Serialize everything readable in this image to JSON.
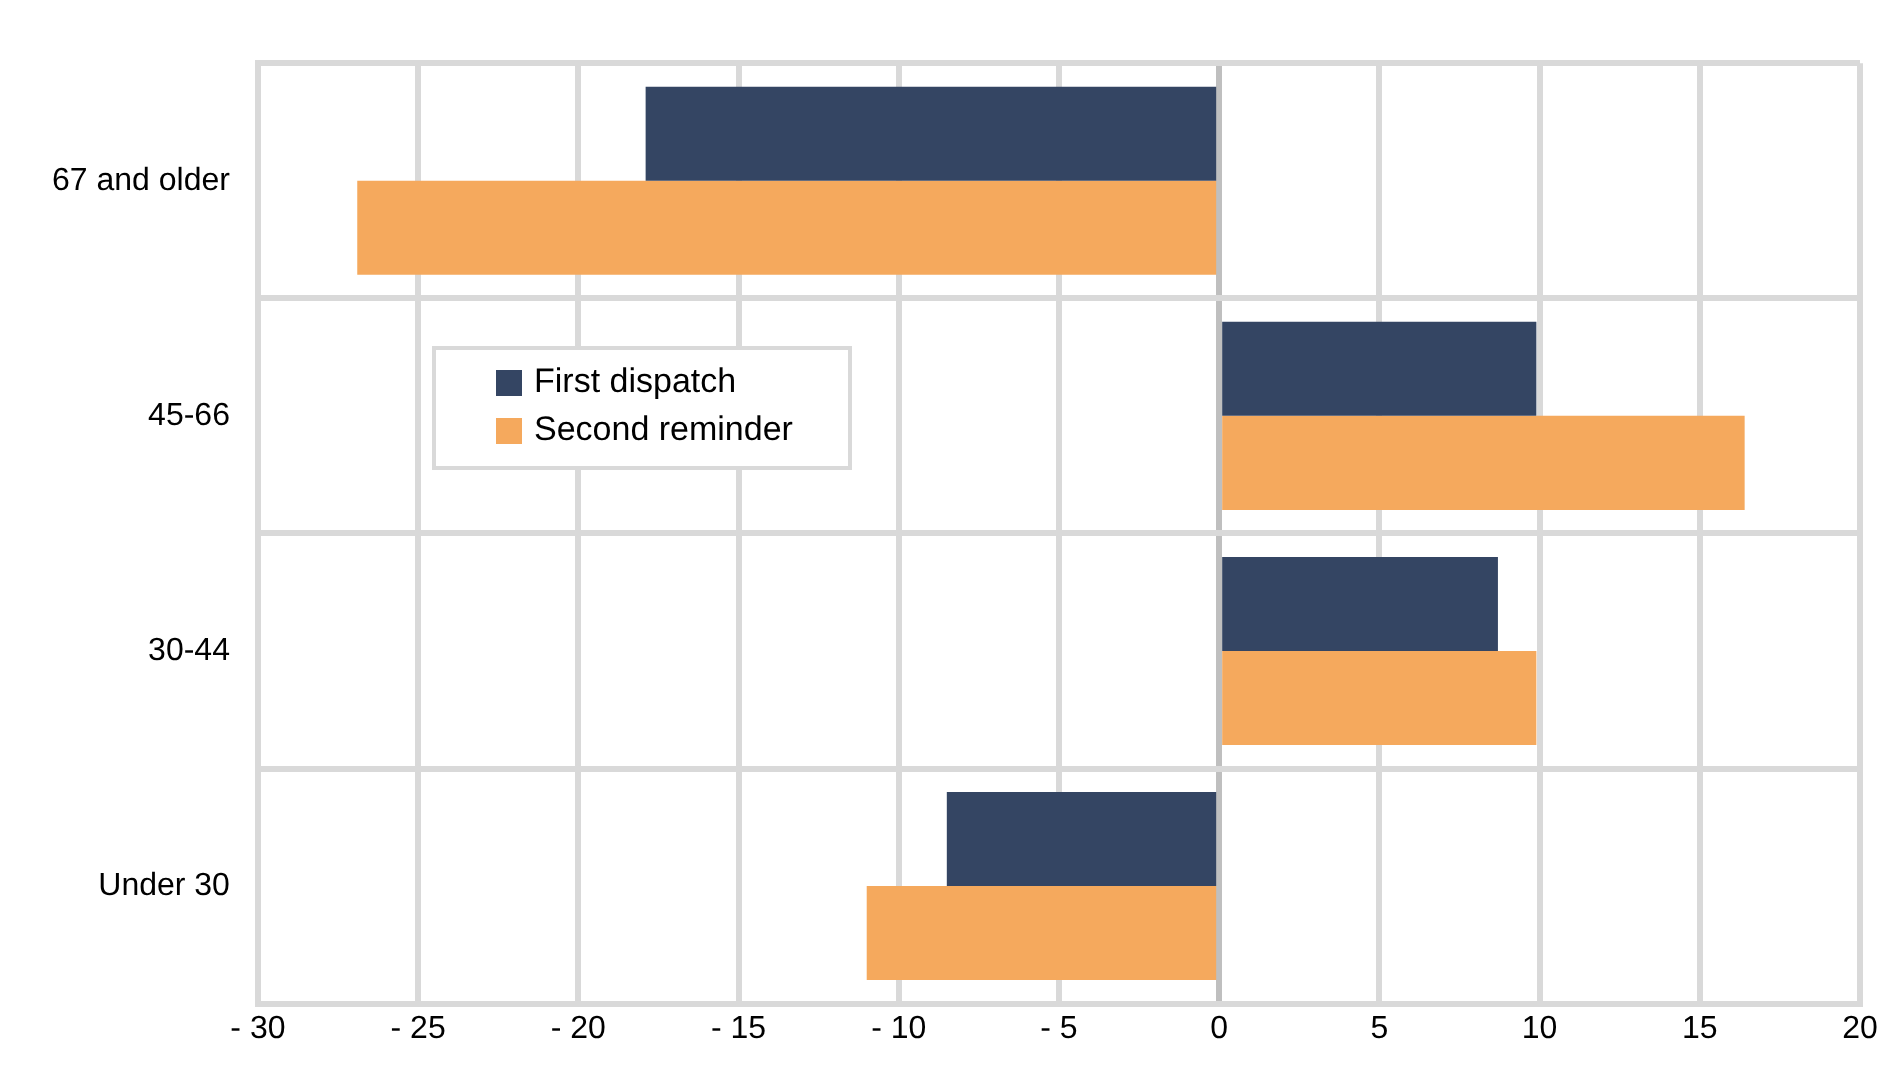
{
  "chart_data": {
    "type": "bar",
    "orientation": "horizontal",
    "categories": [
      "67 and older",
      "45-66",
      "30-44",
      "Under 30"
    ],
    "series": [
      {
        "name": "First dispatch",
        "color": "#344563",
        "values": [
          -17.9,
          9.9,
          8.7,
          -8.5
        ]
      },
      {
        "name": "Second reminder",
        "color": "#f5a95d",
        "values": [
          -26.9,
          16.4,
          9.9,
          -11.0
        ]
      }
    ],
    "xlim": [
      -30,
      20
    ],
    "xticks": [
      {
        "value": -30,
        "label": "- 30"
      },
      {
        "value": -25,
        "label": "- 25"
      },
      {
        "value": -20,
        "label": "- 20"
      },
      {
        "value": -15,
        "label": "- 15"
      },
      {
        "value": -10,
        "label": "- 10"
      },
      {
        "value": -5,
        "label": "- 5"
      },
      0,
      5,
      10,
      15,
      20
    ],
    "grid": true,
    "legend": "left"
  }
}
